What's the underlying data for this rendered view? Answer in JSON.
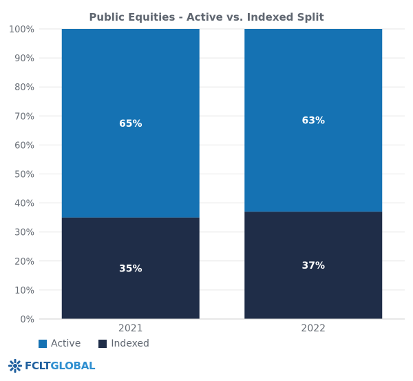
{
  "chart_data": {
    "type": "bar",
    "stacked": true,
    "title": "Public Equities - Active vs. Indexed Split",
    "categories": [
      "2021",
      "2022"
    ],
    "series": [
      {
        "name": "Indexed",
        "values": [
          35,
          37
        ],
        "labels": [
          "35%",
          "37%"
        ],
        "color": "#1f2d48"
      },
      {
        "name": "Active",
        "values": [
          65,
          63
        ],
        "labels": [
          "65%",
          "63%"
        ],
        "color": "#1572b3"
      }
    ],
    "ylim": [
      0,
      100
    ],
    "yticks": [
      "0%",
      "10%",
      "20%",
      "30%",
      "40%",
      "50%",
      "60%",
      "70%",
      "80%",
      "90%",
      "100%"
    ],
    "grid": true,
    "legend_position": "bottom-left"
  },
  "legend": {
    "items": [
      {
        "label": "Active",
        "color": "#1572b3"
      },
      {
        "label": "Indexed",
        "color": "#1f2d48"
      }
    ]
  },
  "logo": {
    "text_fclt": "FCLT",
    "text_global": "GLOBAL"
  }
}
